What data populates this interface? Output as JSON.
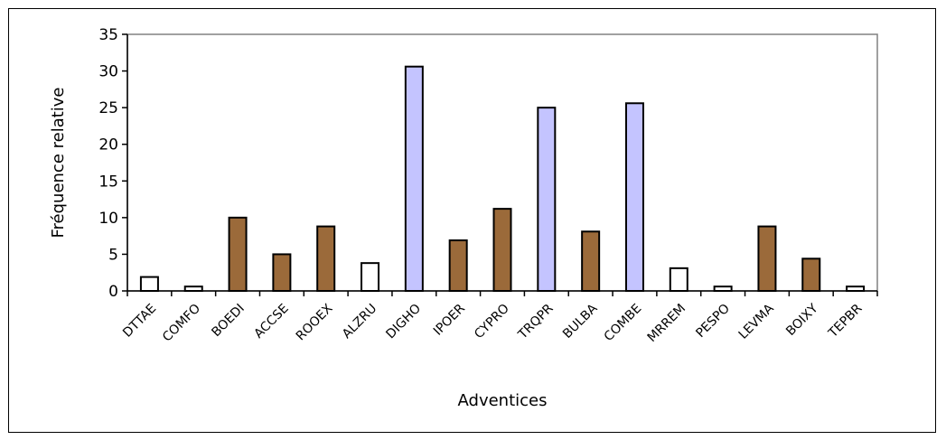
{
  "chart_data": {
    "type": "bar",
    "xlabel": "Adventices",
    "ylabel": "Fréquence relative",
    "ylim": [
      0,
      35
    ],
    "yticks": [
      0,
      5,
      10,
      15,
      20,
      25,
      30,
      35
    ],
    "grid": false,
    "legend": "none",
    "categories": [
      "DTTAE",
      "COMFO",
      "BOEDI",
      "ACCSE",
      "ROOEX",
      "ALZRU",
      "DIGHO",
      "IPOER",
      "CYPRO",
      "TRQPR",
      "BULBA",
      "COMBE",
      "MRREM",
      "PESPO",
      "LEVMA",
      "BOIXY",
      "TEPBR"
    ],
    "values": [
      1.9,
      0.6,
      10.0,
      5.0,
      8.8,
      3.8,
      30.6,
      6.9,
      11.2,
      25.0,
      8.1,
      25.6,
      3.1,
      0.6,
      8.8,
      4.4,
      0.6
    ],
    "bar_groups": [
      "white",
      "white",
      "brown",
      "brown",
      "brown",
      "white",
      "blue",
      "brown",
      "brown",
      "blue",
      "brown",
      "blue",
      "white",
      "white",
      "brown",
      "brown",
      "white"
    ],
    "group_colors": {
      "white": "#ffffff",
      "brown": "#9b6a3a",
      "blue": "#c4c4ff"
    },
    "bar_outline": "#000000",
    "plot_border": "#808080"
  }
}
